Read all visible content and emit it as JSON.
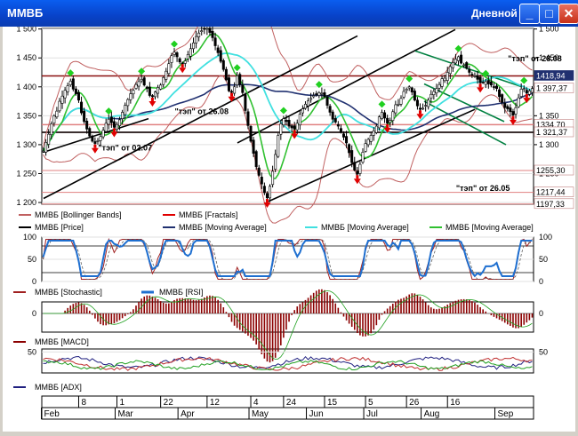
{
  "window": {
    "title": "ММВБ",
    "period": "Дневной",
    "colors": {
      "titlebar": "#0a50e0"
    }
  },
  "chart_data": [
    {
      "type": "candlestick",
      "panel": "price",
      "ylim": [
        1197,
        1501
      ],
      "yticks": [
        "1 500",
        "1 450",
        "1 400",
        "1 350",
        "1 300",
        "1 250",
        "1 200"
      ],
      "price_labels": [
        {
          "value": 1418.94,
          "text": "1418,94"
        },
        {
          "value": 1397.37,
          "text": "1 397,37"
        },
        {
          "value": 1334.7,
          "text": "1334,70"
        },
        {
          "value": 1321.37,
          "text": "1 321,37"
        },
        {
          "value": 1255.3,
          "text": "1255,30"
        },
        {
          "value": 1217.44,
          "text": "1217,44"
        },
        {
          "value": 1197.33,
          "text": "1197,33"
        }
      ],
      "annotations": [
        {
          "text": "\"тэп\" от 28.08",
          "date_index": 180,
          "value": 1444
        },
        {
          "text": "\"тэп\" от 26.08",
          "date_index": 58,
          "value": 1353
        },
        {
          "text": "\"тэп\" от 02.07",
          "date_index": 30,
          "value": 1290
        },
        {
          "text": "\"тэп\" от 26.05",
          "date_index": 161,
          "value": 1220
        }
      ],
      "close": [
        1289,
        1304,
        1318,
        1336,
        1350,
        1358,
        1375,
        1384,
        1394,
        1402,
        1410,
        1396,
        1388,
        1377,
        1355,
        1340,
        1327,
        1315,
        1306,
        1302,
        1307,
        1314,
        1325,
        1337,
        1344,
        1338,
        1330,
        1335,
        1343,
        1356,
        1368,
        1378,
        1388,
        1394,
        1404,
        1409,
        1413,
        1403,
        1397,
        1385,
        1383,
        1391,
        1399,
        1403,
        1416,
        1427,
        1440,
        1454,
        1460,
        1452,
        1443,
        1441,
        1445,
        1456,
        1466,
        1476,
        1487,
        1493,
        1497,
        1500,
        1501,
        1494,
        1485,
        1471,
        1459,
        1444,
        1430,
        1412,
        1393,
        1391,
        1400,
        1419,
        1404,
        1390,
        1359,
        1333,
        1306,
        1285,
        1262,
        1247,
        1232,
        1217,
        1208,
        1228,
        1254,
        1283,
        1316,
        1336,
        1345,
        1340,
        1332,
        1329,
        1327,
        1337,
        1353,
        1362,
        1370,
        1376,
        1380,
        1385,
        1387,
        1390,
        1389,
        1383,
        1368,
        1356,
        1344,
        1339,
        1332,
        1322,
        1313,
        1303,
        1286,
        1269,
        1256,
        1249,
        1266,
        1287,
        1302,
        1309,
        1316,
        1324,
        1332,
        1348,
        1356,
        1346,
        1337,
        1342,
        1357,
        1369,
        1370,
        1380,
        1392,
        1396,
        1400,
        1391,
        1377,
        1367,
        1361,
        1363,
        1368,
        1377,
        1387,
        1392,
        1397,
        1404,
        1414,
        1415,
        1425,
        1435,
        1442,
        1448,
        1452,
        1441,
        1438,
        1432,
        1425,
        1421,
        1419,
        1413,
        1407,
        1407,
        1409,
        1405,
        1403,
        1399,
        1397,
        1383,
        1373,
        1364,
        1362,
        1357,
        1351,
        1364,
        1381,
        1396,
        1397,
        1389,
        1393,
        1397
      ]
    },
    {
      "type": "line",
      "panel": "oscillator",
      "ylim": [
        0,
        100
      ],
      "yticks": [
        "100",
        "50",
        "0"
      ],
      "series": [
        {
          "name": "ММВБ [Stochastic]",
          "color": "#a02020"
        },
        {
          "name": "ММВБ [RSI]",
          "color": "#1e6fd0"
        }
      ]
    },
    {
      "type": "bar",
      "panel": "macd",
      "yticks": [
        "0"
      ],
      "series": [
        {
          "name": "ММВБ [MACD]",
          "color": "#8b0000"
        }
      ]
    },
    {
      "type": "line",
      "panel": "adx",
      "ylim": [
        15,
        55
      ],
      "yticks": [
        "50"
      ],
      "series": [
        {
          "name": "ММВБ [ADX]",
          "color": "#202080"
        }
      ]
    }
  ],
  "legend_price": [
    {
      "name": "ММВБ [Bollinger Bands]",
      "color": "#c06060",
      "style": "line"
    },
    {
      "name": "ММВБ [Fractals]",
      "color": "#e00000",
      "style": "line"
    },
    {
      "name": "ММВБ [Price]",
      "color": "#000000",
      "style": "line"
    },
    {
      "name": "ММВБ [Moving Average]",
      "color": "#203070",
      "style": "line"
    },
    {
      "name": "ММВБ [Moving Average]",
      "color": "#40e0e0",
      "style": "line"
    },
    {
      "name": "ММВБ [Moving Average]",
      "color": "#30c030",
      "style": "line"
    }
  ],
  "time_axis": {
    "days": [
      {
        "label": "8",
        "index": 13
      },
      {
        "label": "1",
        "index": 27
      },
      {
        "label": "22",
        "index": 43
      },
      {
        "label": "12",
        "index": 60
      },
      {
        "label": "4",
        "index": 76
      },
      {
        "label": "24",
        "index": 88
      },
      {
        "label": "15",
        "index": 103
      },
      {
        "label": "5",
        "index": 118
      },
      {
        "label": "26",
        "index": 133
      },
      {
        "label": "16",
        "index": 148
      }
    ],
    "months": [
      {
        "label": "Feb",
        "index": 0
      },
      {
        "label": "Mar",
        "index": 27
      },
      {
        "label": "Apr",
        "index": 50
      },
      {
        "label": "May",
        "index": 76
      },
      {
        "label": "Jun",
        "index": 97
      },
      {
        "label": "Jul",
        "index": 118
      },
      {
        "label": "Aug",
        "index": 139
      },
      {
        "label": "Sep",
        "index": 166
      }
    ]
  }
}
